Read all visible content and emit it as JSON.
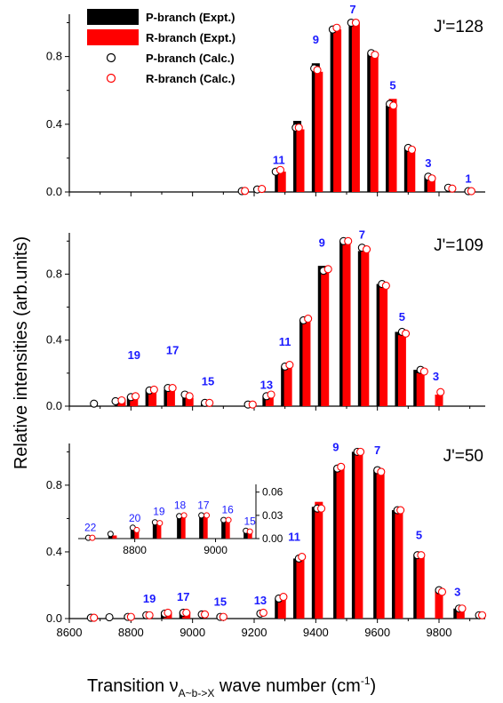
{
  "chart_data": {
    "type": "bar",
    "xlabel": "Transition ν_{A~b->X} wave number (cm^-1)",
    "ylabel": "Relative intensities (arb.units)",
    "xlim": [
      8600,
      9950
    ],
    "x_ticks": [
      "8600",
      "8800",
      "9000",
      "9200",
      "9400",
      "9600",
      "9800"
    ],
    "legend": {
      "placement": "top-left",
      "entries": [
        {
          "name": "P-branch (Expt.)",
          "color": "#000000",
          "kind": "bar"
        },
        {
          "name": "R-branch (Expt.)",
          "color": "#ff0000",
          "kind": "bar"
        },
        {
          "name": "P-branch (Calc.)",
          "color": "#000000",
          "kind": "circle"
        },
        {
          "name": "R-branch (Calc.)",
          "color": "#ff0000",
          "kind": "circle"
        }
      ]
    },
    "panels": [
      {
        "id": "j128",
        "label": "J'=128",
        "ylim": [
          0,
          1.05
        ],
        "y_ticks": [
          "0.0",
          "0.4",
          "0.8"
        ],
        "p_expt": [
          [
            9280,
            0.12
          ],
          [
            9340,
            0.42
          ],
          [
            9400,
            0.76
          ],
          [
            9460,
            0.97
          ],
          [
            9520,
            1.0
          ],
          [
            9580,
            0.82
          ],
          [
            9640,
            0.51
          ],
          [
            9700,
            0.26
          ],
          [
            9765,
            0.09
          ]
        ],
        "r_expt": [
          [
            9290,
            0.12
          ],
          [
            9350,
            0.37
          ],
          [
            9410,
            0.71
          ],
          [
            9470,
            0.96
          ],
          [
            9530,
            1.0
          ],
          [
            9590,
            0.82
          ],
          [
            9650,
            0.55
          ],
          [
            9710,
            0.25
          ],
          [
            9775,
            0.08
          ]
        ],
        "p_calc": [
          [
            9160,
            0.005
          ],
          [
            9210,
            0.015
          ],
          [
            9270,
            0.12
          ],
          [
            9335,
            0.38
          ],
          [
            9395,
            0.73
          ],
          [
            9455,
            0.96
          ],
          [
            9515,
            1.0
          ],
          [
            9580,
            0.82
          ],
          [
            9640,
            0.52
          ],
          [
            9700,
            0.26
          ],
          [
            9765,
            0.09
          ],
          [
            9830,
            0.025
          ],
          [
            9895,
            0.005
          ]
        ],
        "r_calc": [
          [
            9170,
            0.006
          ],
          [
            9225,
            0.018
          ],
          [
            9285,
            0.13
          ],
          [
            9345,
            0.38
          ],
          [
            9405,
            0.72
          ],
          [
            9468,
            0.97
          ],
          [
            9530,
            1.0
          ],
          [
            9592,
            0.81
          ],
          [
            9652,
            0.51
          ],
          [
            9712,
            0.25
          ],
          [
            9777,
            0.08
          ],
          [
            9843,
            0.02
          ],
          [
            9905,
            0.005
          ]
        ],
        "labels": [
          [
            "11",
            9280,
            0.15
          ],
          [
            "9",
            9400,
            0.86
          ],
          [
            "7",
            9520,
            1.04
          ],
          [
            "5",
            9650,
            0.59
          ],
          [
            "3",
            9765,
            0.13
          ],
          [
            "1",
            9895,
            0.04
          ]
        ]
      },
      {
        "id": "j109",
        "label": "J'=109",
        "ylim": [
          0,
          1.05
        ],
        "y_ticks": [
          "0.0",
          "0.4",
          "0.8"
        ],
        "p_expt": [
          [
            8760,
            0.04
          ],
          [
            8800,
            0.06
          ],
          [
            8860,
            0.1
          ],
          [
            8920,
            0.1
          ],
          [
            8980,
            0.06
          ],
          [
            9040,
            0.02
          ],
          [
            9240,
            0.06
          ],
          [
            9300,
            0.24
          ],
          [
            9360,
            0.52
          ],
          [
            9420,
            0.85
          ],
          [
            9490,
            1.0
          ],
          [
            9550,
            0.94
          ],
          [
            9610,
            0.74
          ],
          [
            9670,
            0.45
          ],
          [
            9730,
            0.22
          ]
        ],
        "r_expt": [
          [
            8770,
            0.04
          ],
          [
            8810,
            0.06
          ],
          [
            8870,
            0.1
          ],
          [
            8930,
            0.1
          ],
          [
            8990,
            0.05
          ],
          [
            9050,
            0.02
          ],
          [
            9250,
            0.07
          ],
          [
            9310,
            0.25
          ],
          [
            9370,
            0.53
          ],
          [
            9430,
            0.83
          ],
          [
            9500,
            1.0
          ],
          [
            9560,
            0.95
          ],
          [
            9620,
            0.72
          ],
          [
            9680,
            0.43
          ],
          [
            9740,
            0.2
          ],
          [
            9800,
            0.07
          ]
        ],
        "p_calc": [
          [
            8680,
            0.015
          ],
          [
            8750,
            0.03
          ],
          [
            8800,
            0.055
          ],
          [
            8860,
            0.095
          ],
          [
            8920,
            0.11
          ],
          [
            8975,
            0.07
          ],
          [
            9040,
            0.02
          ],
          [
            9180,
            0.01
          ],
          [
            9240,
            0.06
          ],
          [
            9300,
            0.24
          ],
          [
            9360,
            0.52
          ],
          [
            9425,
            0.82
          ],
          [
            9490,
            1.0
          ],
          [
            9550,
            0.96
          ],
          [
            9615,
            0.74
          ],
          [
            9680,
            0.45
          ],
          [
            9740,
            0.22
          ]
        ],
        "r_calc": [
          [
            8770,
            0.035
          ],
          [
            8815,
            0.06
          ],
          [
            8875,
            0.1
          ],
          [
            8935,
            0.11
          ],
          [
            8990,
            0.06
          ],
          [
            9055,
            0.02
          ],
          [
            9195,
            0.01
          ],
          [
            9255,
            0.07
          ],
          [
            9315,
            0.25
          ],
          [
            9375,
            0.53
          ],
          [
            9440,
            0.83
          ],
          [
            9505,
            1.0
          ],
          [
            9565,
            0.95
          ],
          [
            9628,
            0.73
          ],
          [
            9692,
            0.44
          ],
          [
            9752,
            0.21
          ],
          [
            9805,
            0.085
          ]
        ],
        "labels": [
          [
            "19",
            8810,
            0.27
          ],
          [
            "17",
            8935,
            0.3
          ],
          [
            "15",
            9050,
            0.11
          ],
          [
            "13",
            9240,
            0.09
          ],
          [
            "11",
            9300,
            0.35
          ],
          [
            "9",
            9420,
            0.95
          ],
          [
            "7",
            9550,
            1.0
          ],
          [
            "5",
            9680,
            0.5
          ],
          [
            "3",
            9790,
            0.14
          ]
        ]
      },
      {
        "id": "j50",
        "label": "J'=50",
        "ylim": [
          0,
          1.05
        ],
        "y_ticks": [
          "0.0",
          "0.4",
          "0.8"
        ],
        "p_expt": [
          [
            8910,
            0.04
          ],
          [
            8970,
            0.04
          ],
          [
            9280,
            0.12
          ],
          [
            9340,
            0.36
          ],
          [
            9400,
            0.67
          ],
          [
            9470,
            0.9
          ],
          [
            9530,
            1.0
          ],
          [
            9600,
            0.89
          ],
          [
            9660,
            0.65
          ],
          [
            9730,
            0.38
          ],
          [
            9860,
            0.06
          ]
        ],
        "r_expt": [
          [
            8920,
            0.04
          ],
          [
            8980,
            0.04
          ],
          [
            9290,
            0.13
          ],
          [
            9350,
            0.37
          ],
          [
            9410,
            0.7
          ],
          [
            9480,
            0.91
          ],
          [
            9540,
            1.0
          ],
          [
            9610,
            0.88
          ],
          [
            9670,
            0.65
          ],
          [
            9740,
            0.37
          ],
          [
            9800,
            0.17
          ],
          [
            9870,
            0.07
          ]
        ],
        "p_calc": [
          [
            8670,
            0.005
          ],
          [
            8730,
            0.008
          ],
          [
            8790,
            0.01
          ],
          [
            8850,
            0.02
          ],
          [
            8910,
            0.03
          ],
          [
            8970,
            0.035
          ],
          [
            9030,
            0.025
          ],
          [
            9090,
            0.01
          ],
          [
            9220,
            0.03
          ],
          [
            9280,
            0.12
          ],
          [
            9345,
            0.36
          ],
          [
            9405,
            0.66
          ],
          [
            9470,
            0.9
          ],
          [
            9535,
            1.0
          ],
          [
            9600,
            0.89
          ],
          [
            9665,
            0.65
          ],
          [
            9730,
            0.38
          ],
          [
            9800,
            0.17
          ],
          [
            9865,
            0.06
          ],
          [
            9930,
            0.02
          ]
        ],
        "r_calc": [
          [
            8680,
            0.005
          ],
          [
            8800,
            0.01
          ],
          [
            8860,
            0.02
          ],
          [
            8920,
            0.035
          ],
          [
            8980,
            0.035
          ],
          [
            9040,
            0.025
          ],
          [
            9100,
            0.01
          ],
          [
            9230,
            0.035
          ],
          [
            9295,
            0.13
          ],
          [
            9355,
            0.37
          ],
          [
            9418,
            0.66
          ],
          [
            9482,
            0.91
          ],
          [
            9545,
            1.0
          ],
          [
            9612,
            0.88
          ],
          [
            9675,
            0.65
          ],
          [
            9742,
            0.38
          ],
          [
            9810,
            0.16
          ],
          [
            9875,
            0.06
          ],
          [
            9940,
            0.02
          ]
        ],
        "labels": [
          [
            "19",
            8860,
            0.08
          ],
          [
            "17",
            8970,
            0.09
          ],
          [
            "15",
            9090,
            0.06
          ],
          [
            "13",
            9220,
            0.07
          ],
          [
            "11",
            9330,
            0.45
          ],
          [
            "9",
            9465,
            0.99
          ],
          [
            "7",
            9600,
            0.97
          ],
          [
            "5",
            9735,
            0.46
          ],
          [
            "3",
            9860,
            0.12
          ]
        ],
        "inset": {
          "xlim": [
            8660,
            9100
          ],
          "ylim": [
            0,
            0.07
          ],
          "x_ticks": [
            "8800",
            "9000"
          ],
          "y_ticks": [
            "0.00",
            "0.03",
            "0.06"
          ],
          "p_expt": [
            [
              8740,
              0.005
            ],
            [
              8795,
              0.013
            ],
            [
              8850,
              0.022
            ],
            [
              8910,
              0.03
            ],
            [
              8965,
              0.03
            ],
            [
              9020,
              0.023
            ],
            [
              9075,
              0.008
            ]
          ],
          "r_expt": [
            [
              8750,
              0.004
            ],
            [
              8805,
              0.012
            ],
            [
              8860,
              0.021
            ],
            [
              8920,
              0.03
            ],
            [
              8975,
              0.03
            ],
            [
              9030,
              0.024
            ],
            [
              9085,
              0.008
            ]
          ],
          "p_calc": [
            [
              8685,
              0.001
            ],
            [
              8740,
              0.006
            ],
            [
              8795,
              0.014
            ],
            [
              8850,
              0.021
            ],
            [
              8910,
              0.029
            ],
            [
              8965,
              0.03
            ],
            [
              9020,
              0.024
            ],
            [
              9075,
              0.01
            ]
          ],
          "r_calc": [
            [
              8695,
              0.001
            ],
            [
              8805,
              0.011
            ],
            [
              8862,
              0.02
            ],
            [
              8922,
              0.03
            ],
            [
              8978,
              0.03
            ],
            [
              9032,
              0.024
            ],
            [
              9085,
              0.009
            ]
          ],
          "labels": [
            [
              "22",
              8690,
              0.005
            ],
            [
              "20",
              8800,
              0.017
            ],
            [
              "19",
              8860,
              0.026
            ],
            [
              "18",
              8912,
              0.034
            ],
            [
              "17",
              8970,
              0.034
            ],
            [
              "16",
              9030,
              0.028
            ],
            [
              "15",
              9085,
              0.013
            ]
          ]
        }
      }
    ]
  }
}
